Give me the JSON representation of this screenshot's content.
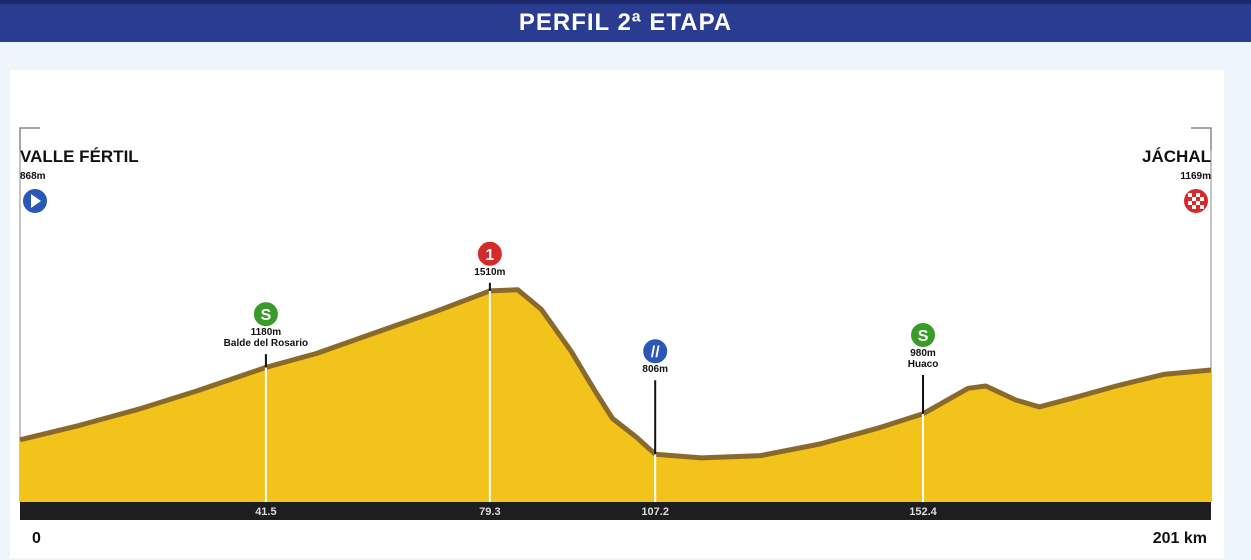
{
  "title": "PERFIL 2ª ETAPA",
  "chart_data": {
    "type": "area",
    "xlim": [
      0,
      201
    ],
    "ylim": [
      600,
      1800
    ],
    "start": {
      "city": "VALLE FÉRTIL",
      "altitude": "868m",
      "icon": "start-arrow-icon"
    },
    "finish": {
      "city": "JÁCHAL",
      "altitude": "1169m",
      "icon": "checkered-flag-icon"
    },
    "axis": {
      "start_label": "0",
      "end_label": "201 km"
    },
    "profile": [
      {
        "km": 0,
        "alt": 868
      },
      {
        "km": 10,
        "alt": 930
      },
      {
        "km": 20,
        "alt": 1000
      },
      {
        "km": 30,
        "alt": 1080
      },
      {
        "km": 41.5,
        "alt": 1180
      },
      {
        "km": 50,
        "alt": 1240
      },
      {
        "km": 60,
        "alt": 1330
      },
      {
        "km": 70,
        "alt": 1420
      },
      {
        "km": 79.3,
        "alt": 1510
      },
      {
        "km": 84,
        "alt": 1515
      },
      {
        "km": 88,
        "alt": 1430
      },
      {
        "km": 93,
        "alt": 1250
      },
      {
        "km": 97,
        "alt": 1080
      },
      {
        "km": 100,
        "alt": 960
      },
      {
        "km": 104,
        "alt": 880
      },
      {
        "km": 107.2,
        "alt": 806
      },
      {
        "km": 115,
        "alt": 790
      },
      {
        "km": 125,
        "alt": 800
      },
      {
        "km": 135,
        "alt": 850
      },
      {
        "km": 145,
        "alt": 920
      },
      {
        "km": 152.4,
        "alt": 980
      },
      {
        "km": 160,
        "alt": 1090
      },
      {
        "km": 163,
        "alt": 1100
      },
      {
        "km": 168,
        "alt": 1040
      },
      {
        "km": 172,
        "alt": 1010
      },
      {
        "km": 178,
        "alt": 1050
      },
      {
        "km": 185,
        "alt": 1100
      },
      {
        "km": 193,
        "alt": 1150
      },
      {
        "km": 201,
        "alt": 1169
      }
    ],
    "markers": [
      {
        "km": 41.5,
        "km_label": "41.5",
        "alt": 1180,
        "altitude": "1180m",
        "place": "Balde del Rosario",
        "badge": "S",
        "badge_color": "#3a9a2a",
        "icon": "sprint-icon",
        "label_alt": 1440
      },
      {
        "km": 79.3,
        "km_label": "79.3",
        "alt": 1510,
        "altitude": "1510m",
        "place": "",
        "badge": "1",
        "badge_color": "#d42a2a",
        "icon": "mountain-cat1-icon",
        "label_alt": 1700
      },
      {
        "km": 107.2,
        "km_label": "107.2",
        "alt": 806,
        "altitude": "806m",
        "place": "",
        "badge": "//",
        "badge_color": "#2a58b8",
        "icon": "feed-zone-icon",
        "label_alt": 1280
      },
      {
        "km": 152.4,
        "km_label": "152.4",
        "alt": 980,
        "altitude": "980m",
        "place": "Huaco",
        "badge": "S",
        "badge_color": "#3a9a2a",
        "icon": "sprint-icon",
        "label_alt": 1350
      }
    ],
    "colors": {
      "fill": "#f2c31b",
      "ridge": "#8a6a2c",
      "axis_bar": "#1e1e1e",
      "header": "#2a3c8f"
    }
  }
}
